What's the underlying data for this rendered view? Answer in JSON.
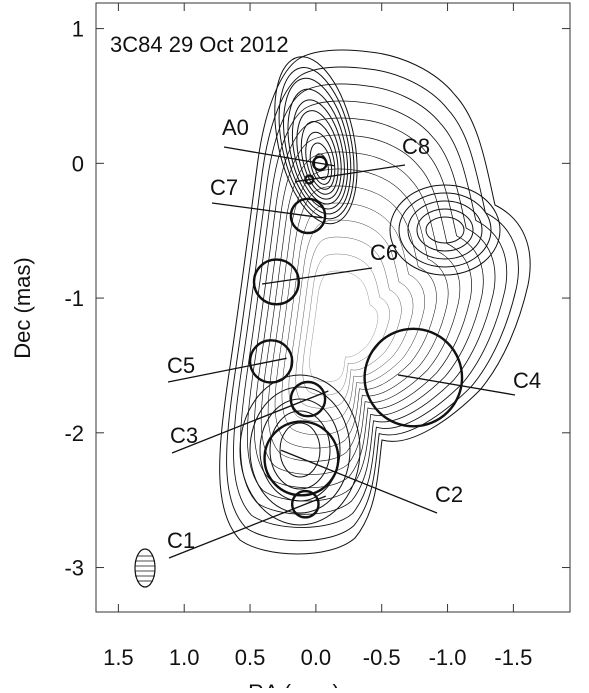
{
  "chart_data": {
    "type": "scatter",
    "title": "3C84  29 Oct 2012",
    "x_label": "RA (mas)",
    "y_label": "Dec (mas)",
    "xlim": [
      1.67,
      -1.93
    ],
    "ylim": [
      -3.33,
      1.19
    ],
    "xticks": [
      1.5,
      {
        "value": 1.0,
        "label": "1.0"
      },
      0.5,
      {
        "value": 0,
        "label": "0.0"
      },
      -0.5,
      {
        "value": -1.0,
        "label": "-1.0"
      },
      -1.5
    ],
    "yticks": [
      1,
      0,
      -1,
      -2,
      -3
    ],
    "color": "#111111",
    "components": [
      {
        "name": "A0",
        "ra": -0.03,
        "dec": 0.0,
        "radius": 0.05
      },
      {
        "name": "C8",
        "ra": 0.05,
        "dec": -0.12,
        "radius": 0.03
      },
      {
        "name": "C7",
        "ra": 0.06,
        "dec": -0.39,
        "radius": 0.13
      },
      {
        "name": "C6",
        "ra": 0.3,
        "dec": -0.88,
        "radius": 0.17
      },
      {
        "name": "C5",
        "ra": 0.34,
        "dec": -1.47,
        "radius": 0.16
      },
      {
        "name": "C3",
        "ra": 0.06,
        "dec": -1.75,
        "radius": 0.13
      },
      {
        "name": "C2",
        "ra": 0.11,
        "dec": -2.19,
        "radius": 0.28
      },
      {
        "name": "C1",
        "ra": 0.08,
        "dec": -2.53,
        "radius": 0.1
      },
      {
        "name": "C4",
        "ra": -0.74,
        "dec": -1.59,
        "radius": 0.37
      }
    ]
  }
}
